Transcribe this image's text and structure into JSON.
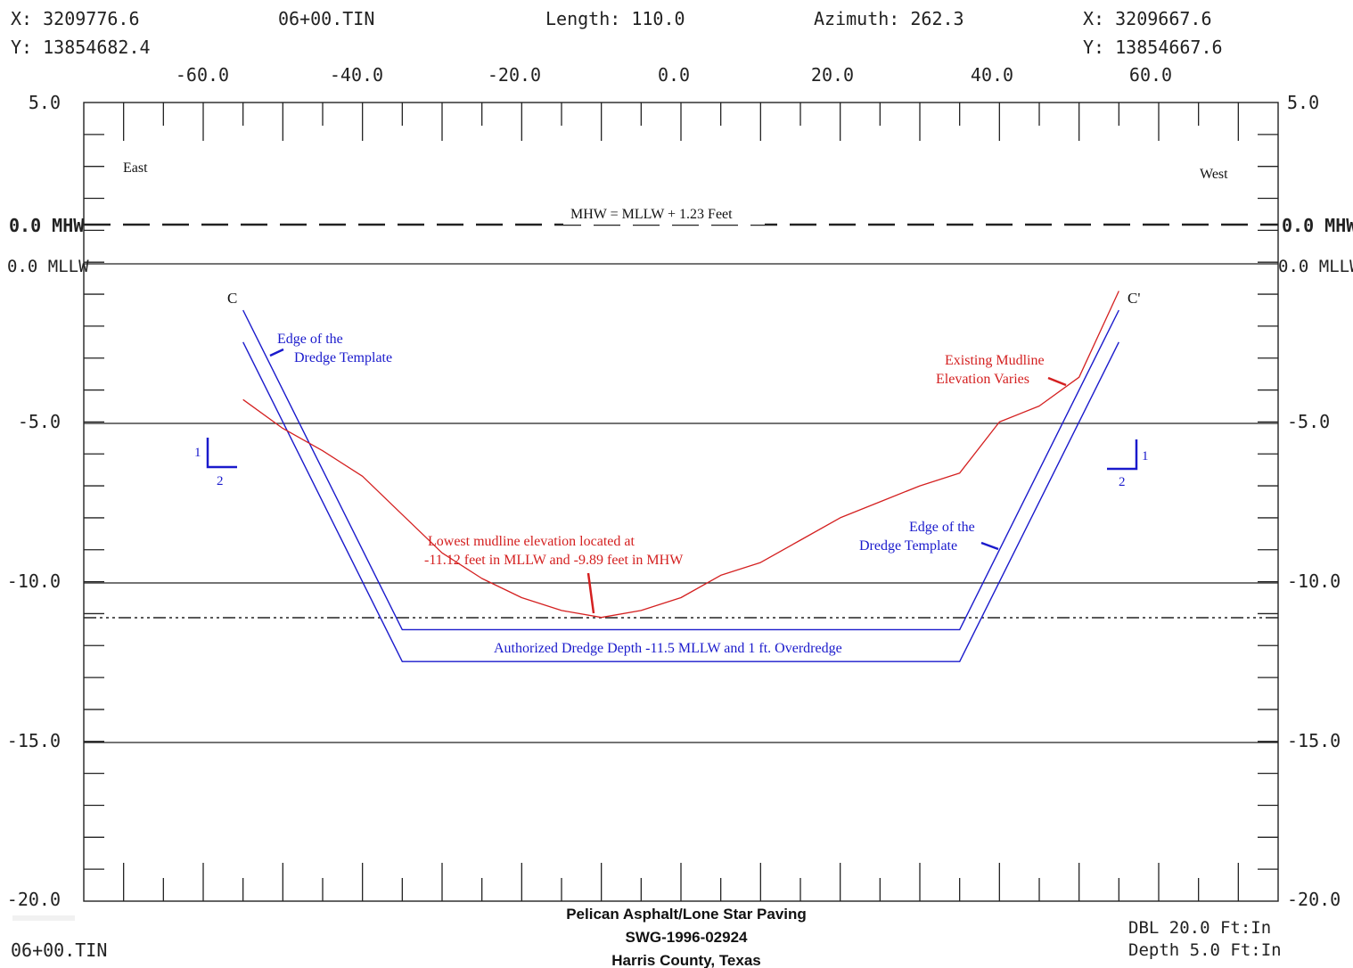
{
  "header": {
    "start_x": "X: 3209776.6",
    "start_y": "Y: 13854682.4",
    "tin_name": "06+00.TIN",
    "length": "Length: 110.0",
    "azimuth": "Azimuth: 262.3",
    "end_x": "X: 3209667.6",
    "end_y": "Y: 13854667.6"
  },
  "x_tick_labels": [
    "-60.0",
    "-40.0",
    "-20.0",
    "0.0",
    "20.0",
    "40.0",
    "60.0"
  ],
  "y_tick_labels": [
    "5.0",
    "-5.0",
    "-10.0",
    "-15.0",
    "-20.0"
  ],
  "datums": {
    "mhw": "0.0 MHW",
    "mllw": "0.0 MLLW"
  },
  "annotations": {
    "east": "East",
    "west": "West",
    "mhw_note": "MHW = MLLW + 1.23 Feet",
    "c_left": "C",
    "c_right": "C'",
    "edge_left_1": "Edge of the",
    "edge_left_2": "Dredge Template",
    "edge_right_1": "Edge of the",
    "edge_right_2": "Dredge Template",
    "mudline_1": "Existing Mudline",
    "mudline_2": "Elevation Varies",
    "lowest_1": "Lowest mudline elevation located at",
    "lowest_2": "-11.12 feet in MLLW and -9.89 feet in MHW",
    "authorized": "Authorized Dredge Depth -11.5 MLLW and 1 ft. Overdredge",
    "slope_rise": "1",
    "slope_run": "2"
  },
  "footer": {
    "title_1": "Pelican Asphalt/Lone Star Paving",
    "title_2": "SWG-1996-02924",
    "title_3": "Harris County, Texas",
    "tin_name": "06+00.TIN",
    "scale_h": "DBL 20.0 Ft:In",
    "scale_v": "Depth 5.0 Ft:In"
  },
  "colors": {
    "template": "#1a1acc",
    "mudline": "#d42020",
    "frame": "#222222"
  },
  "chart_data": {
    "type": "line",
    "x_range": [
      -75,
      75
    ],
    "y_range": [
      -20,
      5
    ],
    "mhw_elevation_mllw": 1.23,
    "lowest_mudline": {
      "x": -10,
      "y_mllw": -11.12,
      "y_mhw": -9.89
    },
    "authorized_depth": -11.5,
    "overdredge_depth": -12.5,
    "side_slope": "1:2",
    "series": [
      {
        "name": "Dredge Template",
        "x": [
          -55,
          -35,
          35,
          55
        ],
        "y": [
          -1.5,
          -11.5,
          -11.5,
          -1.5
        ]
      },
      {
        "name": "Overdredge",
        "x": [
          -55,
          -35,
          35,
          55
        ],
        "y": [
          -2.5,
          -12.5,
          -12.5,
          -2.5
        ]
      },
      {
        "name": "Existing Mudline",
        "x": [
          -55,
          -50,
          -45,
          -40,
          -35,
          -30,
          -25,
          -20,
          -15,
          -10,
          -5,
          0,
          5,
          10,
          15,
          20,
          25,
          30,
          35,
          40,
          45,
          50,
          55
        ],
        "y": [
          -4.3,
          -5.2,
          -5.9,
          -6.7,
          -7.9,
          -9.1,
          -9.9,
          -10.5,
          -10.9,
          -11.12,
          -10.9,
          -10.5,
          -9.8,
          -9.4,
          -8.7,
          -8.0,
          -7.5,
          -7.0,
          -6.6,
          -5.0,
          -4.5,
          -3.6,
          -0.9
        ]
      }
    ]
  }
}
